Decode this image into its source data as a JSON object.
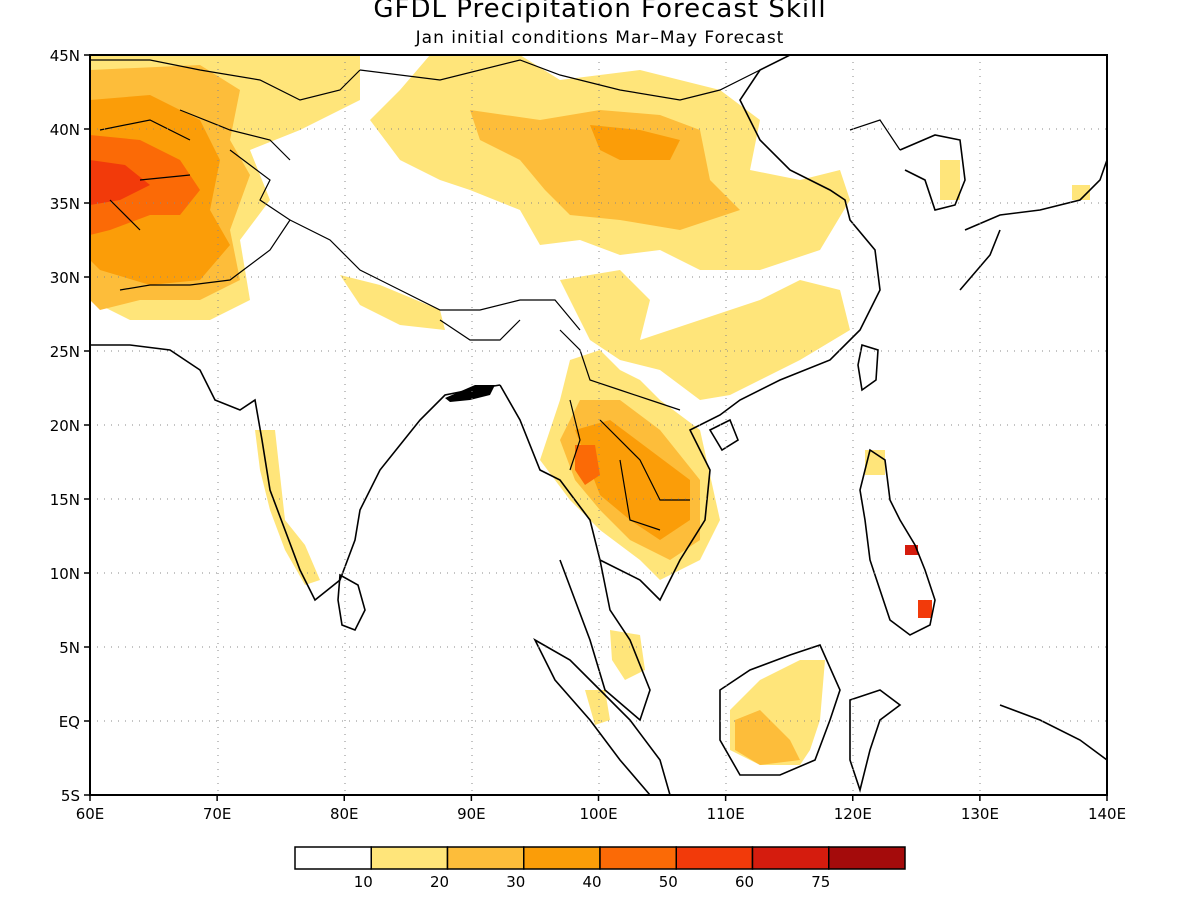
{
  "title": "GFDL Precipitation Forecast Skill",
  "subtitle": "Jan initial conditions   Mar–May Forecast",
  "map": {
    "lon_min": 60,
    "lon_max": 140,
    "lat_min": -5,
    "lat_max": 45,
    "lat_labels": [
      "45N",
      "40N",
      "35N",
      "30N",
      "25N",
      "20N",
      "15N",
      "10N",
      "5N",
      "EQ",
      "5S"
    ],
    "lon_labels": [
      "60E",
      "70E",
      "80E",
      "90E",
      "100E",
      "110E",
      "120E",
      "130E",
      "140E"
    ],
    "grid": "dotted",
    "skill_regions": [
      {
        "region": "Afghanistan / Central Asia",
        "level": "50-60"
      },
      {
        "region": "Iran / Pakistan",
        "level": "30-50"
      },
      {
        "region": "Tibetan Plateau / western China",
        "level": "10-30"
      },
      {
        "region": "Mongolia / northern China",
        "level": "10-30"
      },
      {
        "region": "Southern China",
        "level": "10-20"
      },
      {
        "region": "Indochina (Thailand, Laos, Cambodia)",
        "level": "20-40"
      },
      {
        "region": "Borneo",
        "level": "10-30"
      },
      {
        "region": "Philippines (Mindanao / Visayas)",
        "level": "50-75"
      },
      {
        "region": "Korea",
        "level": "10-20"
      },
      {
        "region": "Western Ghats / south India",
        "level": "10-20"
      },
      {
        "region": "Malay Peninsula / Sumatra",
        "level": "10-20"
      }
    ]
  },
  "colorbar": {
    "colors": [
      "#ffffff",
      "#ffe57a",
      "#fdbd3a",
      "#fb9d08",
      "#fb6a06",
      "#f23a0a",
      "#d51c0e",
      "#a40b0b"
    ],
    "labels": [
      "10",
      "20",
      "30",
      "40",
      "50",
      "60",
      "75"
    ]
  }
}
